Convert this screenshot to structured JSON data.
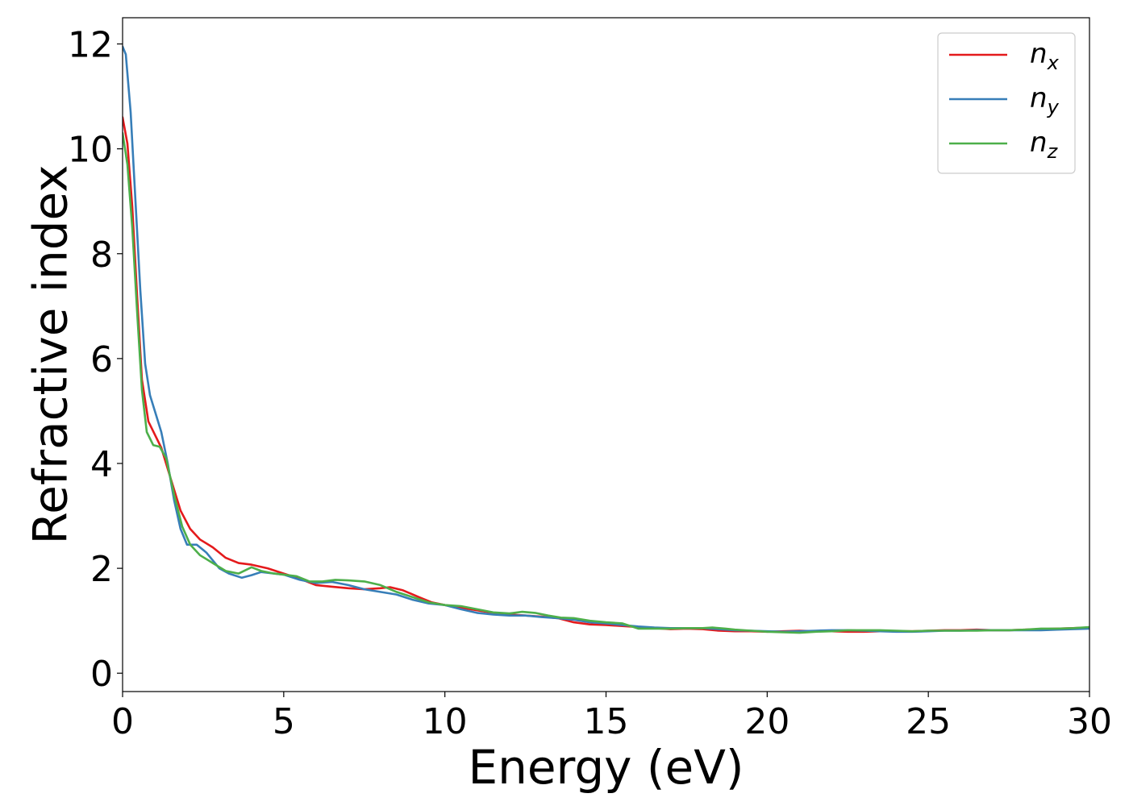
{
  "chart_data": {
    "type": "line",
    "title": "",
    "xlabel": "Energy (eV)",
    "ylabel": "Refractive index",
    "xlim": [
      0,
      30
    ],
    "ylim": [
      -0.35,
      12.5
    ],
    "xticks": [
      "0",
      "5",
      "10",
      "15",
      "20",
      "25",
      "30"
    ],
    "yticks": [
      "0",
      "2",
      "4",
      "6",
      "8",
      "10",
      "12"
    ],
    "grid": false,
    "legend_position": "top-right",
    "series": [
      {
        "name": "n_x",
        "legend_base": "n",
        "legend_sub": "x",
        "color": "#e41a1c",
        "points": [
          [
            0,
            10.6
          ],
          [
            0.15,
            10.1
          ],
          [
            0.3,
            8.9
          ],
          [
            0.45,
            7.2
          ],
          [
            0.6,
            5.6
          ],
          [
            0.8,
            4.8
          ],
          [
            1.0,
            4.55
          ],
          [
            1.2,
            4.3
          ],
          [
            1.5,
            3.7
          ],
          [
            1.8,
            3.1
          ],
          [
            2.1,
            2.75
          ],
          [
            2.4,
            2.55
          ],
          [
            2.8,
            2.4
          ],
          [
            3.2,
            2.2
          ],
          [
            3.6,
            2.1
          ],
          [
            4.0,
            2.07
          ],
          [
            4.5,
            2.0
          ],
          [
            5.0,
            1.9
          ],
          [
            5.5,
            1.8
          ],
          [
            6.0,
            1.68
          ],
          [
            6.5,
            1.65
          ],
          [
            7.0,
            1.62
          ],
          [
            7.5,
            1.6
          ],
          [
            8.0,
            1.62
          ],
          [
            8.3,
            1.64
          ],
          [
            8.7,
            1.58
          ],
          [
            9.2,
            1.45
          ],
          [
            9.6,
            1.35
          ],
          [
            10.0,
            1.3
          ],
          [
            10.5,
            1.25
          ],
          [
            11.0,
            1.2
          ],
          [
            11.5,
            1.15
          ],
          [
            12.0,
            1.12
          ],
          [
            12.5,
            1.1
          ],
          [
            13.0,
            1.08
          ],
          [
            13.5,
            1.05
          ],
          [
            14.0,
            0.97
          ],
          [
            14.5,
            0.93
          ],
          [
            15.0,
            0.92
          ],
          [
            15.5,
            0.9
          ],
          [
            16.0,
            0.88
          ],
          [
            16.5,
            0.86
          ],
          [
            17.0,
            0.84
          ],
          [
            17.5,
            0.85
          ],
          [
            18.0,
            0.84
          ],
          [
            18.5,
            0.81
          ],
          [
            19.0,
            0.8
          ],
          [
            19.5,
            0.8
          ],
          [
            20.0,
            0.79
          ],
          [
            20.5,
            0.8
          ],
          [
            21.0,
            0.81
          ],
          [
            21.5,
            0.8
          ],
          [
            22.0,
            0.8
          ],
          [
            22.5,
            0.79
          ],
          [
            23.0,
            0.79
          ],
          [
            23.5,
            0.8
          ],
          [
            24.0,
            0.8
          ],
          [
            24.5,
            0.8
          ],
          [
            25.0,
            0.81
          ],
          [
            25.5,
            0.82
          ],
          [
            26.0,
            0.82
          ],
          [
            26.5,
            0.83
          ],
          [
            27.0,
            0.82
          ],
          [
            27.5,
            0.82
          ],
          [
            28.0,
            0.83
          ],
          [
            28.5,
            0.84
          ],
          [
            29.0,
            0.85
          ],
          [
            29.5,
            0.86
          ],
          [
            30.0,
            0.87
          ]
        ]
      },
      {
        "name": "n_y",
        "legend_base": "n",
        "legend_sub": "y",
        "color": "#377eb8",
        "points": [
          [
            0,
            11.95
          ],
          [
            0.1,
            11.8
          ],
          [
            0.25,
            10.7
          ],
          [
            0.4,
            9.0
          ],
          [
            0.55,
            7.3
          ],
          [
            0.7,
            5.9
          ],
          [
            0.85,
            5.3
          ],
          [
            1.0,
            5.0
          ],
          [
            1.2,
            4.6
          ],
          [
            1.4,
            4.0
          ],
          [
            1.6,
            3.3
          ],
          [
            1.8,
            2.75
          ],
          [
            2.0,
            2.45
          ],
          [
            2.3,
            2.45
          ],
          [
            2.6,
            2.3
          ],
          [
            3.0,
            2.0
          ],
          [
            3.3,
            1.9
          ],
          [
            3.7,
            1.82
          ],
          [
            4.0,
            1.87
          ],
          [
            4.3,
            1.93
          ],
          [
            4.7,
            1.9
          ],
          [
            5.0,
            1.88
          ],
          [
            5.5,
            1.78
          ],
          [
            6.0,
            1.72
          ],
          [
            6.5,
            1.74
          ],
          [
            7.0,
            1.68
          ],
          [
            7.5,
            1.6
          ],
          [
            8.0,
            1.55
          ],
          [
            8.5,
            1.5
          ],
          [
            9.0,
            1.4
          ],
          [
            9.5,
            1.33
          ],
          [
            10.0,
            1.3
          ],
          [
            10.5,
            1.22
          ],
          [
            11.0,
            1.15
          ],
          [
            11.5,
            1.12
          ],
          [
            12.0,
            1.1
          ],
          [
            12.5,
            1.1
          ],
          [
            13.0,
            1.07
          ],
          [
            13.5,
            1.05
          ],
          [
            14.0,
            1.02
          ],
          [
            14.5,
            0.97
          ],
          [
            15.0,
            0.95
          ],
          [
            15.5,
            0.92
          ],
          [
            16.0,
            0.89
          ],
          [
            16.5,
            0.87
          ],
          [
            17.0,
            0.86
          ],
          [
            17.5,
            0.86
          ],
          [
            18.0,
            0.86
          ],
          [
            18.5,
            0.84
          ],
          [
            19.0,
            0.82
          ],
          [
            19.5,
            0.81
          ],
          [
            20.0,
            0.8
          ],
          [
            20.5,
            0.79
          ],
          [
            21.0,
            0.8
          ],
          [
            21.5,
            0.81
          ],
          [
            22.0,
            0.82
          ],
          [
            22.5,
            0.82
          ],
          [
            23.0,
            0.81
          ],
          [
            23.5,
            0.8
          ],
          [
            24.0,
            0.79
          ],
          [
            24.5,
            0.79
          ],
          [
            25.0,
            0.8
          ],
          [
            25.5,
            0.81
          ],
          [
            26.0,
            0.81
          ],
          [
            26.5,
            0.82
          ],
          [
            27.0,
            0.82
          ],
          [
            27.5,
            0.82
          ],
          [
            28.0,
            0.82
          ],
          [
            28.5,
            0.82
          ],
          [
            29.0,
            0.83
          ],
          [
            29.5,
            0.84
          ],
          [
            30.0,
            0.85
          ]
        ]
      },
      {
        "name": "n_z",
        "legend_base": "n",
        "legend_sub": "z",
        "color": "#4daf4a",
        "points": [
          [
            0,
            10.3
          ],
          [
            0.15,
            9.7
          ],
          [
            0.3,
            8.5
          ],
          [
            0.45,
            6.9
          ],
          [
            0.6,
            5.4
          ],
          [
            0.75,
            4.6
          ],
          [
            0.95,
            4.35
          ],
          [
            1.15,
            4.32
          ],
          [
            1.35,
            4.1
          ],
          [
            1.6,
            3.4
          ],
          [
            1.85,
            2.8
          ],
          [
            2.1,
            2.45
          ],
          [
            2.4,
            2.25
          ],
          [
            2.8,
            2.1
          ],
          [
            3.2,
            1.95
          ],
          [
            3.6,
            1.9
          ],
          [
            4.0,
            2.02
          ],
          [
            4.3,
            1.95
          ],
          [
            4.7,
            1.9
          ],
          [
            5.0,
            1.88
          ],
          [
            5.4,
            1.85
          ],
          [
            5.8,
            1.75
          ],
          [
            6.2,
            1.75
          ],
          [
            6.6,
            1.78
          ],
          [
            7.0,
            1.77
          ],
          [
            7.5,
            1.75
          ],
          [
            8.0,
            1.68
          ],
          [
            8.5,
            1.55
          ],
          [
            9.0,
            1.45
          ],
          [
            9.5,
            1.35
          ],
          [
            10.0,
            1.3
          ],
          [
            10.5,
            1.28
          ],
          [
            11.0,
            1.22
          ],
          [
            11.5,
            1.16
          ],
          [
            12.0,
            1.14
          ],
          [
            12.4,
            1.17
          ],
          [
            12.8,
            1.15
          ],
          [
            13.2,
            1.1
          ],
          [
            13.6,
            1.06
          ],
          [
            14.0,
            1.05
          ],
          [
            14.5,
            1.0
          ],
          [
            15.0,
            0.97
          ],
          [
            15.5,
            0.95
          ],
          [
            16.0,
            0.85
          ],
          [
            16.5,
            0.85
          ],
          [
            17.0,
            0.85
          ],
          [
            17.5,
            0.86
          ],
          [
            18.0,
            0.86
          ],
          [
            18.3,
            0.87
          ],
          [
            18.7,
            0.85
          ],
          [
            19.0,
            0.83
          ],
          [
            19.5,
            0.81
          ],
          [
            20.0,
            0.79
          ],
          [
            20.5,
            0.78
          ],
          [
            21.0,
            0.77
          ],
          [
            21.5,
            0.79
          ],
          [
            22.0,
            0.8
          ],
          [
            22.5,
            0.82
          ],
          [
            23.0,
            0.82
          ],
          [
            23.5,
            0.82
          ],
          [
            24.0,
            0.81
          ],
          [
            24.5,
            0.8
          ],
          [
            25.0,
            0.81
          ],
          [
            25.5,
            0.81
          ],
          [
            26.0,
            0.81
          ],
          [
            26.5,
            0.81
          ],
          [
            27.0,
            0.82
          ],
          [
            27.5,
            0.82
          ],
          [
            28.0,
            0.83
          ],
          [
            28.5,
            0.85
          ],
          [
            29.0,
            0.85
          ],
          [
            29.5,
            0.86
          ],
          [
            30.0,
            0.88
          ]
        ]
      }
    ]
  }
}
